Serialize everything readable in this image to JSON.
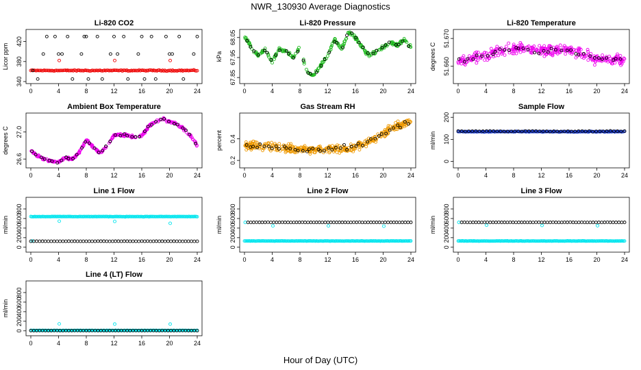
{
  "title": "NWR_130930  Average Diagnostics",
  "x_axis_label": "Hour of Day (UTC)",
  "colors": {
    "black": "#000000",
    "red": "#ee0000",
    "green": "#22bb22",
    "magenta": "#ee00ee",
    "orange": "#ee9900",
    "blue": "#1133cc",
    "cyan": "#00e5ee"
  },
  "chart_data": [
    {
      "id": "co2",
      "type": "scatter",
      "title": "Li-820 CO2",
      "ylabel": "Licor ppm",
      "xlim": [
        0,
        24
      ],
      "ylim": [
        340,
        440
      ],
      "yticks": [
        340,
        380,
        420
      ],
      "yticklabels": [
        "340",
        "380",
        "420"
      ],
      "xticks": [
        0,
        4,
        8,
        12,
        16,
        20,
        24
      ],
      "series": [
        {
          "name": "co2 fine",
          "color": "red",
          "kind": "band",
          "y_center": 362,
          "noise": 1.5,
          "count": 150
        },
        {
          "name": "co2 spikes",
          "color": "red",
          "kind": "points",
          "x": [
            4.1,
            12.1,
            20.1
          ],
          "y": [
            382,
            382,
            382
          ]
        },
        {
          "name": "reference cycles",
          "color": "black",
          "kind": "points",
          "x": [
            0.3,
            1.0,
            1.8,
            2.3,
            3.5,
            4.0,
            4.5,
            5.3,
            6.0,
            7.3,
            7.7,
            8.0,
            8.3,
            9.6,
            10.3,
            11.5,
            12.0,
            12.5,
            13.4,
            14.0,
            15.5,
            16.0,
            16.4,
            17.4,
            18.0,
            19.5,
            20.0,
            20.4,
            21.4,
            22.0,
            23.5,
            24.0
          ],
          "y": [
            362,
            345,
            395,
            430,
            430,
            395,
            395,
            430,
            345,
            395,
            430,
            430,
            345,
            430,
            345,
            395,
            430,
            395,
            430,
            345,
            395,
            430,
            345,
            430,
            345,
            430,
            395,
            395,
            430,
            345,
            395,
            430
          ]
        }
      ]
    },
    {
      "id": "pressure",
      "type": "scatter",
      "title": "Li-820 Pressure",
      "ylabel": "kPa",
      "xlim": [
        0,
        24
      ],
      "ylim": [
        67.83,
        68.08
      ],
      "yticks": [
        67.85,
        67.95,
        68.05
      ],
      "yticklabels": [
        "67.85",
        "67.95",
        "68.05"
      ],
      "xticks": [
        0,
        4,
        8,
        12,
        16,
        20,
        24
      ],
      "series": [
        {
          "name": "pressure",
          "color": "green",
          "kind": "curve",
          "x": [
            0,
            1,
            2,
            3,
            4,
            5,
            6,
            7,
            8,
            9,
            10,
            11,
            12,
            13,
            14,
            15,
            16,
            17,
            18,
            19,
            20,
            21,
            22,
            23,
            24
          ],
          "y": [
            68.06,
            68.0,
            67.96,
            67.99,
            67.93,
            67.99,
            67.98,
            67.95,
            68.0,
            67.88,
            67.86,
            67.91,
            67.96,
            68.04,
            67.99,
            68.08,
            68.05,
            68.0,
            67.96,
            67.98,
            68.0,
            68.03,
            68.01,
            68.04,
            68.0
          ],
          "spread": 0.012,
          "count": 260
        },
        {
          "name": "pressure refs",
          "color": "black",
          "kind": "curve_sample",
          "count": 38,
          "spread": 0.014
        }
      ]
    },
    {
      "id": "temperature",
      "type": "scatter",
      "title": "Li-820 Temperature",
      "ylabel": "degrees C",
      "xlim": [
        0,
        24
      ],
      "ylim": [
        51.6545,
        51.6725
      ],
      "yticks": [
        51.66,
        51.67
      ],
      "yticklabels": [
        "51.660",
        "51.670"
      ],
      "xticks": [
        0,
        4,
        8,
        12,
        16,
        20,
        24
      ],
      "series": [
        {
          "name": "temperature",
          "color": "magenta",
          "kind": "curve",
          "x": [
            0,
            2,
            4,
            6,
            8,
            10,
            12,
            14,
            16,
            18,
            20,
            22,
            24
          ],
          "y": [
            51.6615,
            51.6625,
            51.6635,
            51.6655,
            51.6665,
            51.6665,
            51.6655,
            51.666,
            51.6655,
            51.6645,
            51.6625,
            51.6625,
            51.662
          ],
          "spread": 0.0028,
          "count": 340
        },
        {
          "name": "temperature refs",
          "color": "black",
          "kind": "curve_sample",
          "count": 36,
          "spread": 0.0015
        }
      ]
    },
    {
      "id": "boxtemp",
      "type": "scatter",
      "title": "Ambient Box Temperature",
      "ylabel": "degrees C",
      "xlim": [
        0,
        24
      ],
      "ylim": [
        26.5,
        27.25
      ],
      "yticks": [
        26.6,
        27.0
      ],
      "yticklabels": [
        "26.6",
        "27.0"
      ],
      "xticks": [
        0,
        4,
        8,
        12,
        16,
        20,
        24
      ],
      "series": [
        {
          "name": "box temperature",
          "color": "magenta",
          "kind": "curve",
          "x": [
            0,
            1,
            2,
            3,
            4,
            5,
            6,
            7,
            8,
            9,
            10,
            11,
            12,
            13,
            14,
            15,
            16,
            17,
            18,
            19,
            20,
            21,
            22,
            23,
            24
          ],
          "y": [
            26.73,
            26.64,
            26.6,
            26.57,
            26.56,
            26.62,
            26.6,
            26.7,
            26.88,
            26.78,
            26.68,
            26.8,
            26.95,
            26.96,
            26.95,
            26.92,
            26.95,
            27.08,
            27.15,
            27.2,
            27.15,
            27.12,
            27.05,
            26.95,
            26.8
          ],
          "spread": 0.025,
          "count": 300
        },
        {
          "name": "box temperature refs",
          "color": "black",
          "kind": "curve_sample",
          "count": 40,
          "spread": 0.02
        }
      ]
    },
    {
      "id": "rh",
      "type": "scatter",
      "title": "Gas Stream RH",
      "ylabel": "percent",
      "xlim": [
        0,
        24
      ],
      "ylim": [
        0.15,
        0.62
      ],
      "yticks": [
        0.2,
        0.4
      ],
      "yticklabels": [
        "0.2",
        "0.4"
      ],
      "xticks": [
        0,
        4,
        8,
        12,
        16,
        20,
        24
      ],
      "series": [
        {
          "name": "rh",
          "color": "orange",
          "kind": "curve",
          "x": [
            0,
            4,
            8,
            12,
            16,
            18,
            20,
            22,
            24
          ],
          "y": [
            0.34,
            0.33,
            0.3,
            0.3,
            0.32,
            0.37,
            0.45,
            0.52,
            0.56
          ],
          "spread": 0.055,
          "count": 380
        },
        {
          "name": "rh refs",
          "color": "black",
          "kind": "curve_sample",
          "count": 44,
          "spread": 0.04
        }
      ]
    },
    {
      "id": "sampleflow",
      "type": "scatter",
      "title": "Sample Flow",
      "ylabel": "ml/min",
      "xlim": [
        0,
        24
      ],
      "ylim": [
        -20,
        210
      ],
      "yticks": [
        0,
        100,
        200
      ],
      "yticklabels": [
        "0",
        "100",
        "200"
      ],
      "xticks": [
        0,
        4,
        8,
        12,
        16,
        20,
        24
      ],
      "series": [
        {
          "name": "sample flow",
          "color": "blue",
          "kind": "band",
          "y_center": 135,
          "noise": 2,
          "count": 170
        },
        {
          "name": "sample flow refs",
          "color": "black",
          "kind": "band",
          "y_center": 137,
          "noise": 3,
          "count": 48
        }
      ]
    },
    {
      "id": "line1",
      "type": "scatter",
      "title": "Line 1 Flow",
      "ylabel": "ml/min",
      "xlim": [
        0,
        24
      ],
      "ylim": [
        -60,
        1000
      ],
      "yticks": [
        0,
        200,
        400,
        600,
        800
      ],
      "yticklabels": [
        "0",
        "200",
        "400",
        "600",
        "800"
      ],
      "xticks": [
        0,
        4,
        8,
        12,
        16,
        20,
        24
      ],
      "series": [
        {
          "name": "line1 flow high",
          "color": "cyan",
          "kind": "band",
          "y_center": 640,
          "noise": 5,
          "count": 170
        },
        {
          "name": "line1 flow dips",
          "color": "cyan",
          "kind": "points",
          "x": [
            0.2,
            4.1,
            12.1,
            20.1
          ],
          "y": [
            130,
            545,
            540,
            500
          ]
        },
        {
          "name": "line1 flow low",
          "color": "black",
          "kind": "band",
          "y_center": 125,
          "noise": 3,
          "count": 58
        }
      ]
    },
    {
      "id": "line2",
      "type": "scatter",
      "title": "Line 2 Flow",
      "ylabel": "ml/min",
      "xlim": [
        0,
        24
      ],
      "ylim": [
        -60,
        1000
      ],
      "yticks": [
        0,
        200,
        400,
        600,
        800
      ],
      "yticklabels": [
        "0",
        "200",
        "400",
        "600",
        "800"
      ],
      "xticks": [
        0,
        4,
        8,
        12,
        16,
        20,
        24
      ],
      "series": [
        {
          "name": "line2 flow low",
          "color": "cyan",
          "kind": "band",
          "y_center": 130,
          "noise": 4,
          "count": 170
        },
        {
          "name": "line2 flow spikes",
          "color": "cyan",
          "kind": "points",
          "x": [
            0.1,
            4.1,
            12.1,
            20.1
          ],
          "y": [
            520,
            445,
            445,
            440
          ]
        },
        {
          "name": "line2 flow high",
          "color": "black",
          "kind": "band",
          "y_center": 520,
          "noise": 3,
          "count": 58,
          "x_start": 0.5
        }
      ]
    },
    {
      "id": "line3",
      "type": "scatter",
      "title": "Line 3 Flow",
      "ylabel": "ml/min",
      "xlim": [
        0,
        24
      ],
      "ylim": [
        -60,
        1000
      ],
      "yticks": [
        0,
        200,
        400,
        600,
        800
      ],
      "yticklabels": [
        "0",
        "200",
        "400",
        "600",
        "800"
      ],
      "xticks": [
        0,
        4,
        8,
        12,
        16,
        20,
        24
      ],
      "series": [
        {
          "name": "line3 flow low",
          "color": "cyan",
          "kind": "band",
          "y_center": 130,
          "noise": 4,
          "count": 170
        },
        {
          "name": "line3 flow spikes",
          "color": "cyan",
          "kind": "points",
          "x": [
            0.1,
            4.1,
            12.1,
            20.1
          ],
          "y": [
            520,
            460,
            455,
            450
          ]
        },
        {
          "name": "line3 flow high",
          "color": "black",
          "kind": "band",
          "y_center": 520,
          "noise": 3,
          "count": 58,
          "x_start": 0.5
        }
      ]
    },
    {
      "id": "line4",
      "type": "scatter",
      "title": "Line 4 (LT) Flow",
      "ylabel": "ml/min",
      "xlim": [
        0,
        24
      ],
      "ylim": [
        -60,
        1000
      ],
      "yticks": [
        0,
        200,
        400,
        600,
        800
      ],
      "yticklabels": [
        "0",
        "200",
        "400",
        "600",
        "800"
      ],
      "xticks": [
        0,
        4,
        8,
        12,
        16,
        20,
        24
      ],
      "series": [
        {
          "name": "line4 flow cyan",
          "color": "cyan",
          "kind": "band",
          "y_center": 8,
          "noise": 2,
          "count": 160
        },
        {
          "name": "line4 flow spikes",
          "color": "cyan",
          "kind": "points",
          "x": [
            4.1,
            12.1,
            20.1
          ],
          "y": [
            145,
            140,
            140
          ]
        },
        {
          "name": "line4 flow black",
          "color": "black",
          "kind": "band",
          "y_center": 5,
          "noise": 2,
          "count": 58
        }
      ]
    }
  ]
}
